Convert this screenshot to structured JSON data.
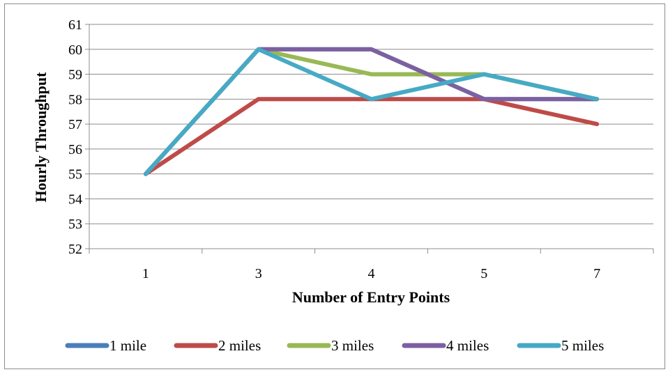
{
  "chart_data": {
    "type": "line",
    "title": "",
    "xlabel": "Number of Entry Points",
    "ylabel": "Hourly Throughput",
    "categories": [
      "1",
      "3",
      "4",
      "5",
      "7"
    ],
    "ylim": [
      52,
      61
    ],
    "yticks": [
      52,
      53,
      54,
      55,
      56,
      57,
      58,
      59,
      60,
      61
    ],
    "grid": true,
    "legend_position": "bottom",
    "series": [
      {
        "name": "1 mile",
        "color": "#4a7ebb",
        "values": [
          55,
          60,
          60,
          58,
          58
        ]
      },
      {
        "name": "2 miles",
        "color": "#be4b48",
        "values": [
          55,
          58,
          58,
          58,
          57
        ]
      },
      {
        "name": "3 miles",
        "color": "#98b954",
        "values": [
          55,
          60,
          59,
          59,
          58
        ]
      },
      {
        "name": "4 miles",
        "color": "#7d60a0",
        "values": [
          55,
          60,
          60,
          58,
          58
        ]
      },
      {
        "name": "5 miles",
        "color": "#46aac5",
        "values": [
          55,
          60,
          58,
          59,
          58
        ]
      }
    ]
  }
}
